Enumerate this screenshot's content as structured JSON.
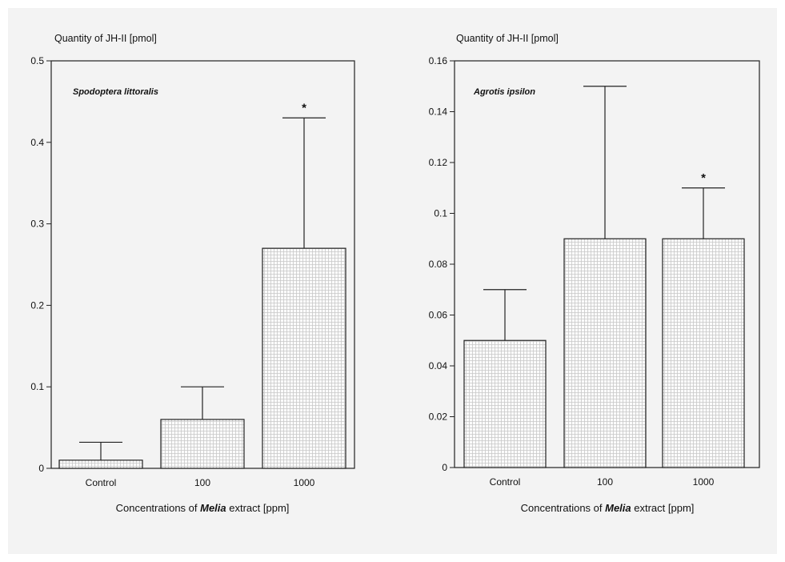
{
  "chart_data": [
    {
      "type": "bar",
      "species": "Spodoptera littoralis",
      "ylabel": "Quantity of JH-II [pmol]",
      "xlabel_parts": [
        "Concentrations of ",
        "Melia",
        " extract [ppm]"
      ],
      "categories": [
        "Control",
        "100",
        "1000"
      ],
      "values": [
        0.01,
        0.06,
        0.27
      ],
      "errors": [
        0.022,
        0.04,
        0.16
      ],
      "significance": [
        "",
        "",
        "*"
      ],
      "ylim": [
        0,
        0.5
      ],
      "yticks": [
        0,
        0.1,
        0.2,
        0.3,
        0.4,
        0.5
      ],
      "ytick_labels": [
        "0",
        "0.1",
        "0.2",
        "0.3",
        "0.4",
        "0.5"
      ]
    },
    {
      "type": "bar",
      "species": "Agrotis ipsilon",
      "ylabel": "Quantity of JH-II [pmol]",
      "xlabel_parts": [
        "Concentrations of ",
        "Melia",
        " extract [ppm]"
      ],
      "categories": [
        "Control",
        "100",
        "1000"
      ],
      "values": [
        0.05,
        0.09,
        0.09
      ],
      "errors": [
        0.02,
        0.06,
        0.02
      ],
      "significance": [
        "",
        "",
        "*"
      ],
      "ylim": [
        0,
        0.16
      ],
      "yticks": [
        0,
        0.02,
        0.04,
        0.06,
        0.08,
        0.1,
        0.12,
        0.14,
        0.16
      ],
      "ytick_labels": [
        "0",
        "0.02",
        "0.04",
        "0.06",
        "0.08",
        "0.1",
        "0.12",
        "0.14",
        "0.16"
      ]
    }
  ]
}
